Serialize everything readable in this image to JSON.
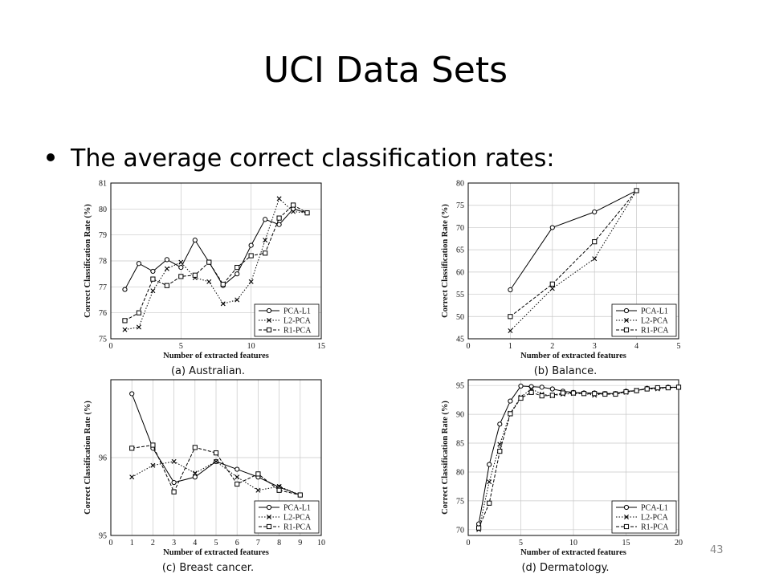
{
  "slide": {
    "title": "UCI Data Sets",
    "bullet": "The average correct classification rates:",
    "page_number": "43"
  },
  "legend_labels": [
    "PCA-L1",
    "L2-PCA",
    "R1-PCA"
  ],
  "chart_data": [
    {
      "type": "line",
      "caption": "(a) Australian.",
      "xlabel": "Number of extracted features",
      "ylabel": "Correct Classification Rate (%)",
      "xlim": [
        0,
        15
      ],
      "ylim": [
        75,
        81
      ],
      "xticks": [
        0,
        5,
        10,
        15
      ],
      "yticks": [
        75,
        76,
        77,
        78,
        79,
        80,
        81
      ],
      "grid": true,
      "legend_position": "bottom-right",
      "series": [
        {
          "name": "PCA-L1",
          "marker": "circle",
          "dash": "solid",
          "x": [
            1,
            2,
            3,
            4,
            5,
            6,
            7,
            8,
            9,
            10,
            11,
            12,
            13,
            14
          ],
          "y": [
            76.9,
            77.9,
            77.6,
            78.05,
            77.75,
            78.8,
            77.95,
            77.05,
            77.5,
            78.6,
            79.6,
            79.4,
            80.0,
            79.85
          ]
        },
        {
          "name": "L2-PCA",
          "marker": "cross",
          "dash": "dotted",
          "x": [
            1,
            2,
            3,
            4,
            5,
            6,
            7,
            8,
            9,
            10,
            11,
            12,
            13,
            14
          ],
          "y": [
            75.35,
            75.45,
            76.85,
            77.7,
            77.95,
            77.35,
            77.2,
            76.35,
            76.5,
            77.2,
            78.8,
            80.4,
            79.9,
            79.85
          ]
        },
        {
          "name": "R1-PCA",
          "marker": "square",
          "dash": "dashed",
          "x": [
            1,
            2,
            3,
            4,
            5,
            6,
            7,
            8,
            9,
            10,
            11,
            12,
            13,
            14
          ],
          "y": [
            75.7,
            76.0,
            77.3,
            77.05,
            77.4,
            77.45,
            77.95,
            77.1,
            77.75,
            78.2,
            78.3,
            79.65,
            80.15,
            79.85
          ]
        }
      ]
    },
    {
      "type": "line",
      "caption": "(b) Balance.",
      "xlabel": "Number of extracted features",
      "ylabel": "Correct Classification Rate (%)",
      "xlim": [
        0,
        5
      ],
      "ylim": [
        45,
        80
      ],
      "xticks": [
        0,
        1,
        2,
        3,
        4,
        5
      ],
      "yticks": [
        45,
        50,
        55,
        60,
        65,
        70,
        75,
        80
      ],
      "grid": true,
      "legend_position": "bottom-right",
      "series": [
        {
          "name": "PCA-L1",
          "marker": "circle",
          "dash": "solid",
          "x": [
            1,
            2,
            3,
            4
          ],
          "y": [
            56.0,
            70.0,
            73.5,
            78.3
          ]
        },
        {
          "name": "L2-PCA",
          "marker": "cross",
          "dash": "dotted",
          "x": [
            1,
            2,
            3,
            4
          ],
          "y": [
            46.8,
            56.3,
            63.0,
            78.3
          ]
        },
        {
          "name": "R1-PCA",
          "marker": "square",
          "dash": "dashed",
          "x": [
            1,
            2,
            3,
            4
          ],
          "y": [
            50.0,
            57.3,
            66.8,
            78.3
          ]
        }
      ]
    },
    {
      "type": "line",
      "caption": "(c) Breast cancer.",
      "xlabel": "Number of extracted features",
      "ylabel": "Correct Classification Rate (%)",
      "xlim": [
        0,
        10
      ],
      "ylim": [
        95,
        97
      ],
      "xticks": [
        0,
        1,
        2,
        3,
        4,
        5,
        6,
        7,
        8,
        9,
        10
      ],
      "yticks": [
        95,
        96
      ],
      "grid": true,
      "legend_position": "bottom-right",
      "series": [
        {
          "name": "PCA-L1",
          "marker": "circle",
          "dash": "solid",
          "x": [
            1,
            2,
            3,
            4,
            5,
            6,
            7,
            8,
            9
          ],
          "y": [
            96.82,
            96.12,
            95.68,
            95.75,
            95.95,
            95.85,
            95.75,
            95.62,
            95.52
          ]
        },
        {
          "name": "L2-PCA",
          "marker": "cross",
          "dash": "dotted",
          "x": [
            1,
            2,
            3,
            4,
            5,
            6,
            7,
            8,
            9
          ],
          "y": [
            95.75,
            95.9,
            95.95,
            95.8,
            95.95,
            95.75,
            95.58,
            95.63,
            95.52
          ]
        },
        {
          "name": "R1-PCA",
          "marker": "square",
          "dash": "dashed",
          "x": [
            1,
            2,
            3,
            4,
            5,
            6,
            7,
            8,
            9
          ],
          "y": [
            96.12,
            96.16,
            95.56,
            96.13,
            96.06,
            95.66,
            95.79,
            95.58,
            95.52
          ]
        }
      ]
    },
    {
      "type": "line",
      "caption": "(d) Dermatology.",
      "xlabel": "Number of extracted features",
      "ylabel": "Correct Classification Rate (%)",
      "xlim": [
        0,
        20
      ],
      "ylim": [
        69,
        96
      ],
      "xticks": [
        0,
        5,
        10,
        15,
        20
      ],
      "yticks": [
        70,
        75,
        80,
        85,
        90,
        95
      ],
      "grid": true,
      "legend_position": "bottom-right",
      "series": [
        {
          "name": "PCA-L1",
          "marker": "circle",
          "dash": "solid",
          "x": [
            1,
            2,
            3,
            4,
            5,
            6,
            7,
            8,
            9,
            10,
            11,
            12,
            13,
            14,
            15,
            16,
            17,
            18,
            19,
            20
          ],
          "y": [
            71.0,
            81.3,
            88.3,
            92.3,
            94.9,
            94.8,
            94.7,
            94.4,
            94.0,
            93.8,
            93.7,
            93.7,
            93.6,
            93.6,
            94.0,
            94.1,
            94.5,
            94.6,
            94.7,
            94.7
          ]
        },
        {
          "name": "L2-PCA",
          "marker": "cross",
          "dash": "dotted",
          "x": [
            1,
            2,
            3,
            4,
            5,
            6,
            7,
            8,
            9,
            10,
            11,
            12,
            13,
            14,
            15,
            16,
            17,
            18,
            19,
            20
          ],
          "y": [
            70.0,
            78.3,
            84.8,
            90.2,
            93.0,
            94.4,
            93.5,
            93.2,
            93.5,
            93.6,
            93.6,
            93.3,
            93.6,
            93.6,
            93.8,
            94.2,
            94.4,
            94.4,
            94.6,
            94.7
          ]
        },
        {
          "name": "R1-PCA",
          "marker": "square",
          "dash": "dashed",
          "x": [
            1,
            2,
            3,
            4,
            5,
            6,
            7,
            8,
            9,
            10,
            11,
            12,
            13,
            14,
            15,
            16,
            17,
            18,
            19,
            20
          ],
          "y": [
            70.3,
            74.6,
            83.6,
            90.1,
            92.8,
            93.8,
            93.2,
            93.3,
            93.7,
            93.7,
            93.6,
            93.6,
            93.5,
            93.5,
            93.9,
            94.1,
            94.4,
            94.6,
            94.6,
            94.7
          ]
        }
      ]
    }
  ]
}
